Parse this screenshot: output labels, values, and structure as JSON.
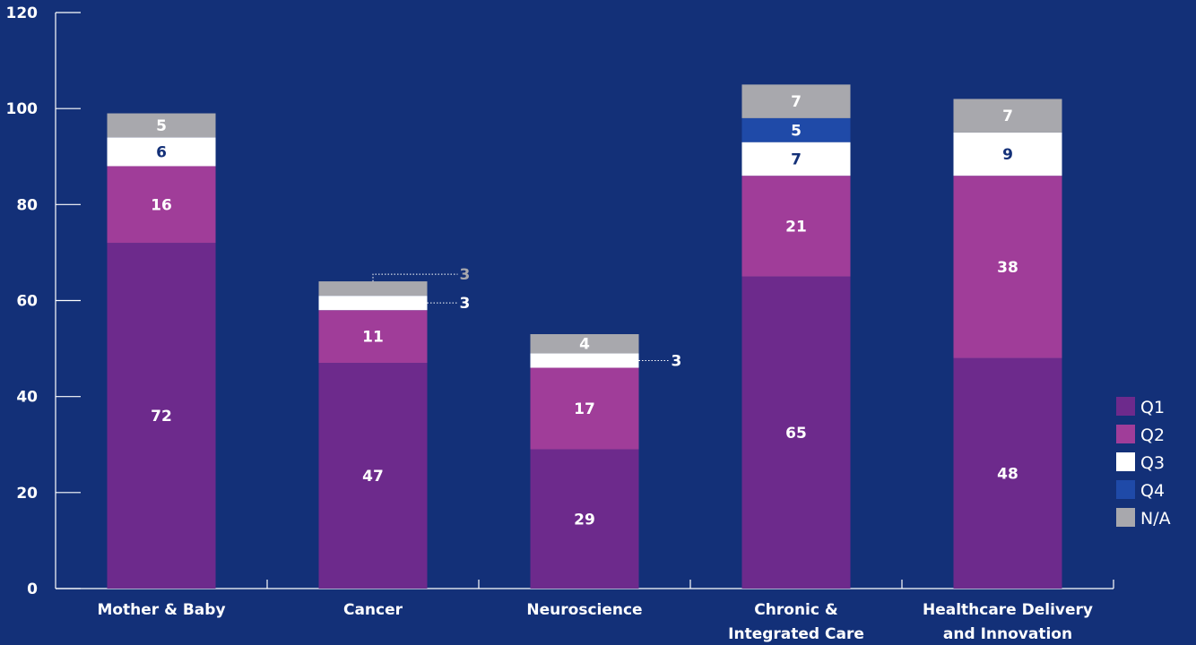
{
  "chart_data": {
    "type": "bar",
    "stacked": true,
    "categories": [
      "Mother & Baby",
      "Cancer",
      "Neuroscience",
      "Chronic &\nIntegrated Care",
      "Healthcare Delivery\nand Innovation"
    ],
    "series": [
      {
        "name": "Q1",
        "values": [
          72,
          47,
          29,
          65,
          48
        ],
        "color": "#6d2a8c"
      },
      {
        "name": "Q2",
        "values": [
          16,
          11,
          17,
          21,
          38
        ],
        "color": "#a03d99"
      },
      {
        "name": "Q3",
        "values": [
          6,
          3,
          3,
          7,
          9
        ],
        "color": "#ffffff"
      },
      {
        "name": "Q4",
        "values": [
          0,
          0,
          0,
          5,
          0
        ],
        "color": "#1f4aa8"
      },
      {
        "name": "N/A",
        "values": [
          5,
          3,
          4,
          7,
          7
        ],
        "color": "#a8a8ad"
      }
    ],
    "ylim": [
      0,
      120
    ],
    "yticks": [
      0,
      20,
      40,
      60,
      80,
      100,
      120
    ],
    "grid": false,
    "legend_position": "right",
    "title": "",
    "xlabel": "",
    "ylabel": ""
  },
  "colors": {
    "background": "#133078",
    "axis": "#ffffff",
    "label_on_white": "#133078",
    "callout_gray": "#a8a8ad"
  }
}
